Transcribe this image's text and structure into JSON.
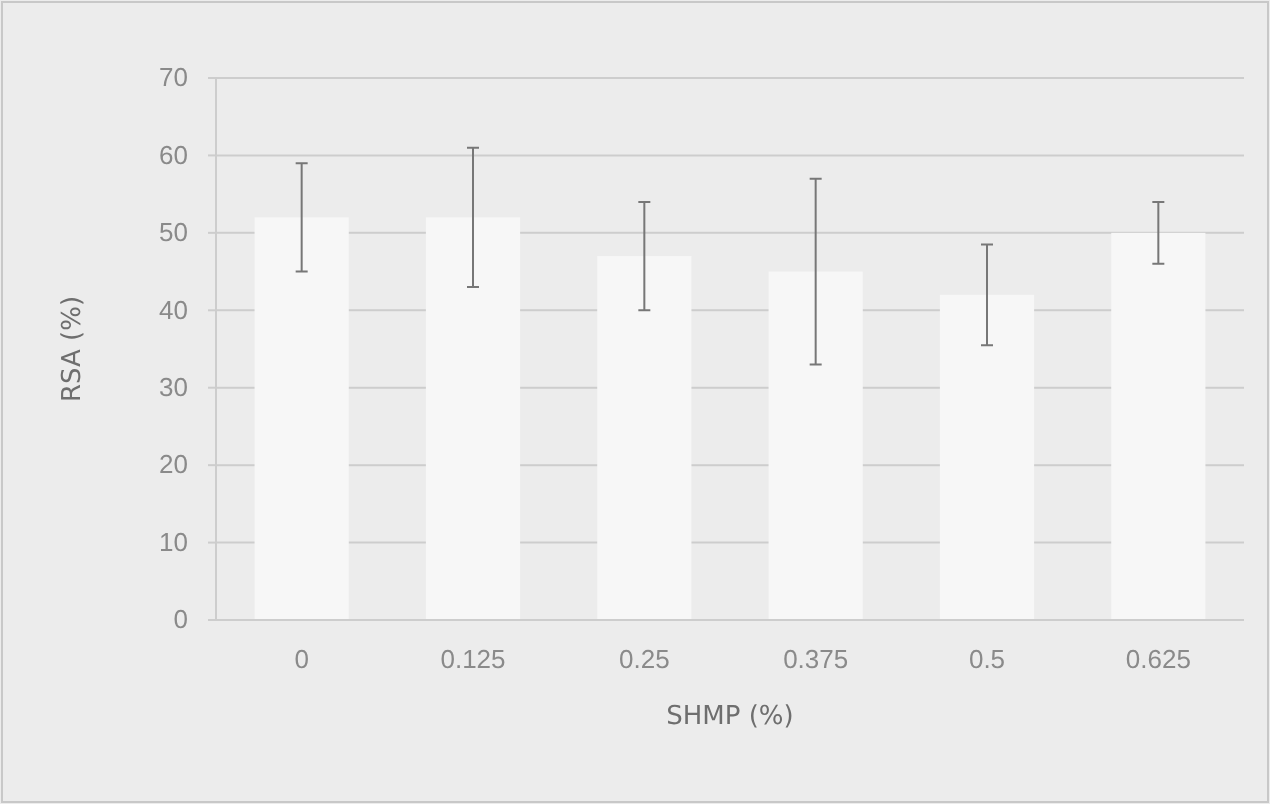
{
  "chart_data": {
    "type": "bar",
    "xlabel": "SHMP (%)",
    "ylabel": "RSA (%)",
    "categories": [
      "0",
      "0.125",
      "0.25",
      "0.375",
      "0.5",
      "0.625"
    ],
    "values": [
      52,
      52,
      47,
      45,
      42,
      50
    ],
    "errors": [
      7,
      9,
      7,
      12,
      6.5,
      4
    ],
    "color": "#f7f7f7",
    "ylim": [
      0,
      70
    ],
    "yticks": [
      0,
      10,
      20,
      30,
      40,
      50,
      60,
      70
    ],
    "grid": "y"
  }
}
